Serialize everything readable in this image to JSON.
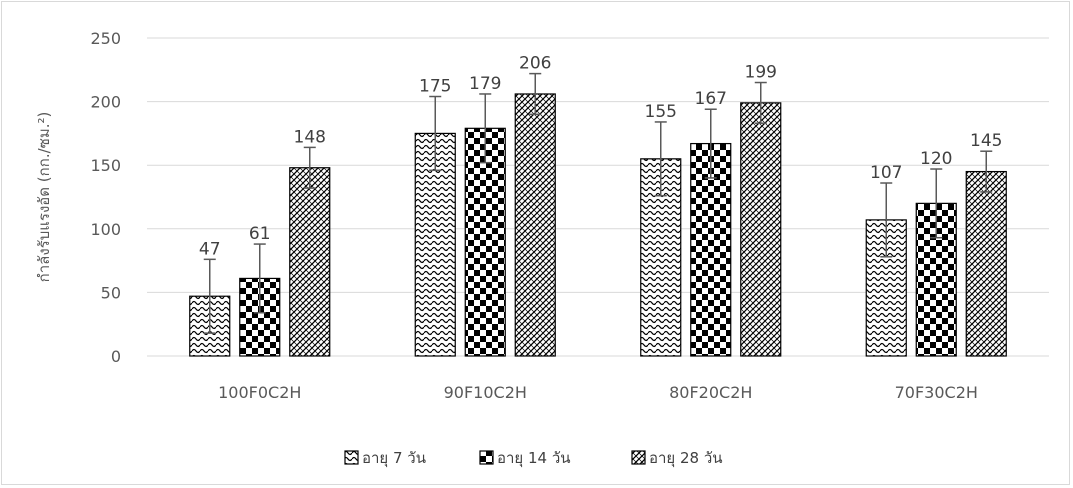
{
  "chart_data": {
    "type": "bar",
    "title": "",
    "ylabel": "กำลังรับแรงอัด (กก./ซม.²)",
    "xlabel": "",
    "ylim": [
      0,
      250
    ],
    "yticks": [
      0,
      50,
      100,
      150,
      200,
      250
    ],
    "categories": [
      "100F0C2H",
      "90F10C2H",
      "80F20C2H",
      "70F30C2H"
    ],
    "series": [
      {
        "name": "อายุ 7 วัน",
        "values": [
          47,
          175,
          155,
          107
        ],
        "error": [
          29,
          29,
          29,
          29
        ],
        "pattern": "wave"
      },
      {
        "name": "อายุ  14 วัน",
        "values": [
          61,
          179,
          167,
          120
        ],
        "error": [
          27,
          27,
          27,
          27
        ],
        "pattern": "checker"
      },
      {
        "name": "อายุ 28 วัน",
        "values": [
          148,
          206,
          199,
          145
        ],
        "error": [
          16,
          16,
          16,
          16
        ],
        "pattern": "diagonal"
      }
    ],
    "grid": true,
    "legend_position": "bottom",
    "colors": {
      "grid": "#d9d9d9",
      "bar_stroke": "#000000",
      "error_bar": "#595959"
    }
  }
}
